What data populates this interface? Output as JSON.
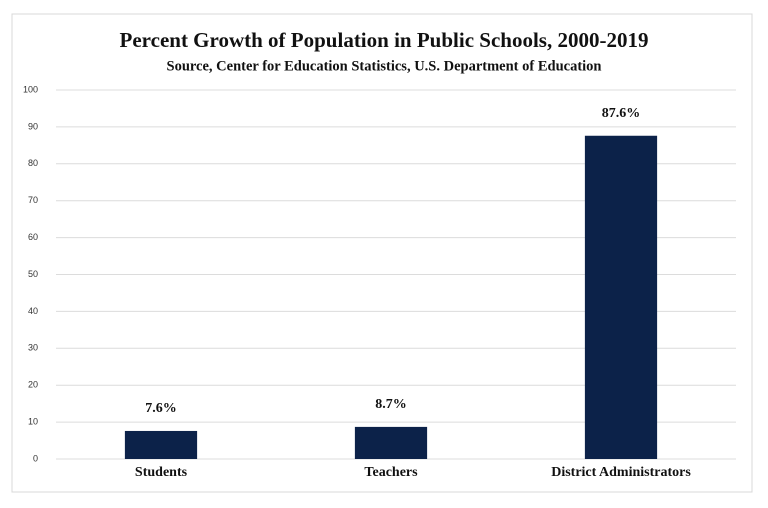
{
  "chart_data": {
    "type": "bar",
    "title": "Percent Growth of Population in Public Schools, 2000-2019",
    "subtitle": "Source, Center for Education Statistics, U.S. Department of Education",
    "categories": [
      "Students",
      "Teachers",
      "District Administrators"
    ],
    "values": [
      7.6,
      8.7,
      87.6
    ],
    "value_labels": [
      "7.6%",
      "8.7%",
      "87.6%"
    ],
    "color": "#0c2249",
    "ylim": [
      0,
      100
    ],
    "yticks": [
      0,
      10,
      20,
      30,
      40,
      50,
      60,
      70,
      80,
      90,
      100
    ],
    "grid": true
  }
}
